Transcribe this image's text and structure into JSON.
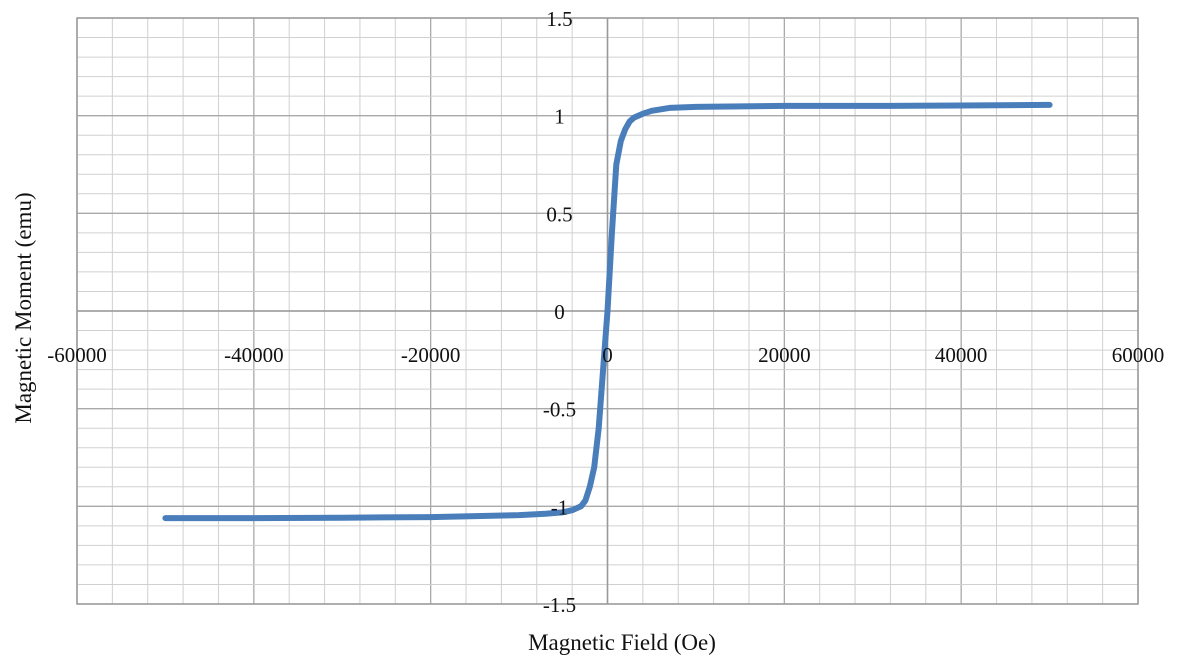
{
  "chart_data": {
    "type": "line",
    "title": "",
    "xlabel": "Magnetic Field (Oe)",
    "ylabel": "Magnetic Moment (emu)",
    "xlim": [
      -60000,
      60000
    ],
    "ylim": [
      -1.5,
      1.5
    ],
    "x_ticks": [
      -60000,
      -40000,
      -20000,
      0,
      20000,
      40000,
      60000
    ],
    "x_tick_labels": [
      "-60000",
      "-40000",
      "-20000",
      "0",
      "20000",
      "40000",
      "60000"
    ],
    "y_ticks": [
      1.5,
      1,
      0.5,
      0,
      -0.5,
      -1,
      -1.5
    ],
    "y_tick_labels": [
      "1.5",
      "1",
      "0.5",
      "0",
      "-0.5",
      "-1",
      "-1.5"
    ],
    "x_minor_step": 4000,
    "y_minor_step": 0.1,
    "grid": true,
    "legend": "none",
    "series": [
      {
        "color": "#4a7ebb",
        "x": [
          -50000,
          -40000,
          -30000,
          -20000,
          -10000,
          -7000,
          -5000,
          -4000,
          -3000,
          -2500,
          -2000,
          -1500,
          -1000,
          -500,
          0,
          500,
          1000,
          1500,
          2000,
          2500,
          3000,
          4000,
          5000,
          7000,
          10000,
          20000,
          30000,
          40000,
          50000
        ],
        "y": [
          -1.06,
          -1.06,
          -1.058,
          -1.055,
          -1.045,
          -1.038,
          -1.03,
          -1.02,
          -1.0,
          -0.97,
          -0.9,
          -0.8,
          -0.6,
          -0.3,
          0.0,
          0.4,
          0.75,
          0.87,
          0.93,
          0.97,
          0.99,
          1.01,
          1.025,
          1.04,
          1.045,
          1.05,
          1.05,
          1.052,
          1.055
        ]
      }
    ]
  }
}
